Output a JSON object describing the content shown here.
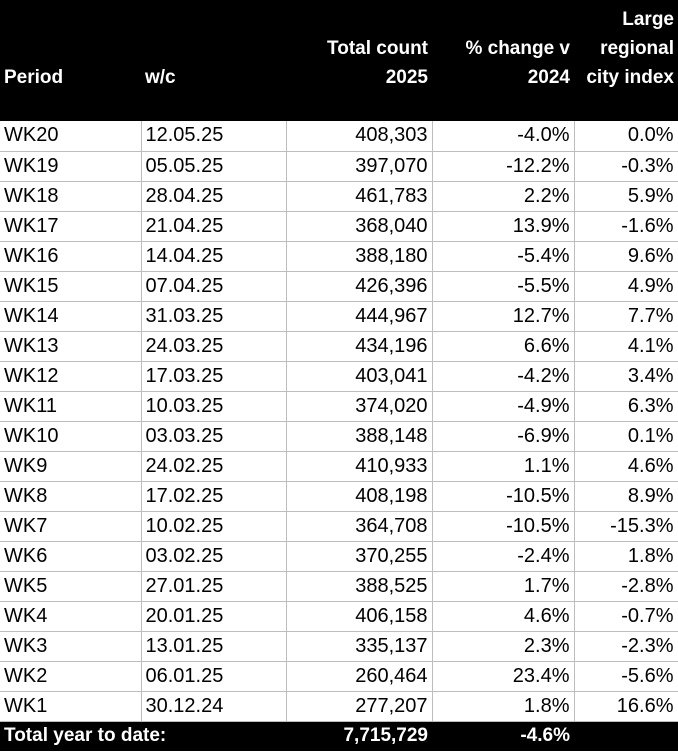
{
  "header": {
    "period": "Period",
    "wc": "w/c",
    "total_count": [
      "Total count",
      "2025"
    ],
    "pct_change": [
      "% change v",
      "2024"
    ],
    "city_index": [
      "Large",
      "regional",
      "city index"
    ]
  },
  "rows": [
    {
      "period": "WK20",
      "wc": "12.05.25",
      "total": "408,303",
      "change": "-4.0%",
      "index": "0.0%"
    },
    {
      "period": "WK19",
      "wc": "05.05.25",
      "total": "397,070",
      "change": "-12.2%",
      "index": "-0.3%"
    },
    {
      "period": "WK18",
      "wc": "28.04.25",
      "total": "461,783",
      "change": "2.2%",
      "index": "5.9%"
    },
    {
      "period": "WK17",
      "wc": "21.04.25",
      "total": "368,040",
      "change": "13.9%",
      "index": "-1.6%"
    },
    {
      "period": "WK16",
      "wc": "14.04.25",
      "total": "388,180",
      "change": "-5.4%",
      "index": "9.6%"
    },
    {
      "period": "WK15",
      "wc": "07.04.25",
      "total": "426,396",
      "change": "-5.5%",
      "index": "4.9%"
    },
    {
      "period": "WK14",
      "wc": "31.03.25",
      "total": "444,967",
      "change": "12.7%",
      "index": "7.7%"
    },
    {
      "period": "WK13",
      "wc": "24.03.25",
      "total": "434,196",
      "change": "6.6%",
      "index": "4.1%"
    },
    {
      "period": "WK12",
      "wc": "17.03.25",
      "total": "403,041",
      "change": "-4.2%",
      "index": "3.4%"
    },
    {
      "period": "WK11",
      "wc": "10.03.25",
      "total": "374,020",
      "change": "-4.9%",
      "index": "6.3%"
    },
    {
      "period": "WK10",
      "wc": "03.03.25",
      "total": "388,148",
      "change": "-6.9%",
      "index": "0.1%"
    },
    {
      "period": "WK9",
      "wc": "24.02.25",
      "total": "410,933",
      "change": "1.1%",
      "index": "4.6%"
    },
    {
      "period": "WK8",
      "wc": "17.02.25",
      "total": "408,198",
      "change": "-10.5%",
      "index": "8.9%"
    },
    {
      "period": "WK7",
      "wc": "10.02.25",
      "total": "364,708",
      "change": "-10.5%",
      "index": "-15.3%"
    },
    {
      "period": "WK6",
      "wc": "03.02.25",
      "total": "370,255",
      "change": "-2.4%",
      "index": "1.8%"
    },
    {
      "period": "WK5",
      "wc": "27.01.25",
      "total": "388,525",
      "change": "1.7%",
      "index": "-2.8%"
    },
    {
      "period": "WK4",
      "wc": "20.01.25",
      "total": "406,158",
      "change": "4.6%",
      "index": "-0.7%"
    },
    {
      "period": "WK3",
      "wc": "13.01.25",
      "total": "335,137",
      "change": "2.3%",
      "index": "-2.3%"
    },
    {
      "period": "WK2",
      "wc": "06.01.25",
      "total": "260,464",
      "change": "23.4%",
      "index": "-5.6%"
    },
    {
      "period": "WK1",
      "wc": "30.12.24",
      "total": "277,207",
      "change": "1.8%",
      "index": "16.6%"
    }
  ],
  "footer": {
    "label": "Total year to date:",
    "total": "7,715,729",
    "change": "-4.6%"
  }
}
